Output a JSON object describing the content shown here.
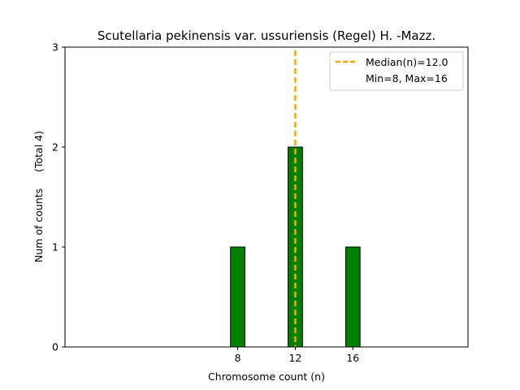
{
  "chart_data": {
    "type": "bar",
    "title": "Scutellaria pekinensis var. ussuriensis (Regel) H. -Mazz.",
    "xlabel": "Chromosome count (n)",
    "ylabel": "Num of counts     (Total 4)",
    "x": [
      8,
      12,
      16
    ],
    "values": [
      1,
      2,
      1
    ],
    "bar_width": 1,
    "xlim": [
      -4,
      24
    ],
    "ylim": [
      0,
      3
    ],
    "xticks": [
      8,
      12,
      16
    ],
    "yticks": [
      0,
      1,
      2,
      3
    ],
    "bar_color": "#008000",
    "bar_edge_color": "#000000",
    "baseline_end": 19,
    "median_line": {
      "x": 12,
      "color": "#ffa500",
      "style": "dashed"
    },
    "legend": {
      "placement": "upper right",
      "entries": [
        {
          "label": "Median(n)=12.0",
          "marker": "dashed-line",
          "color": "#ffa500"
        },
        {
          "label": "Min=8, Max=16",
          "marker": "none"
        }
      ]
    },
    "grid": false
  }
}
